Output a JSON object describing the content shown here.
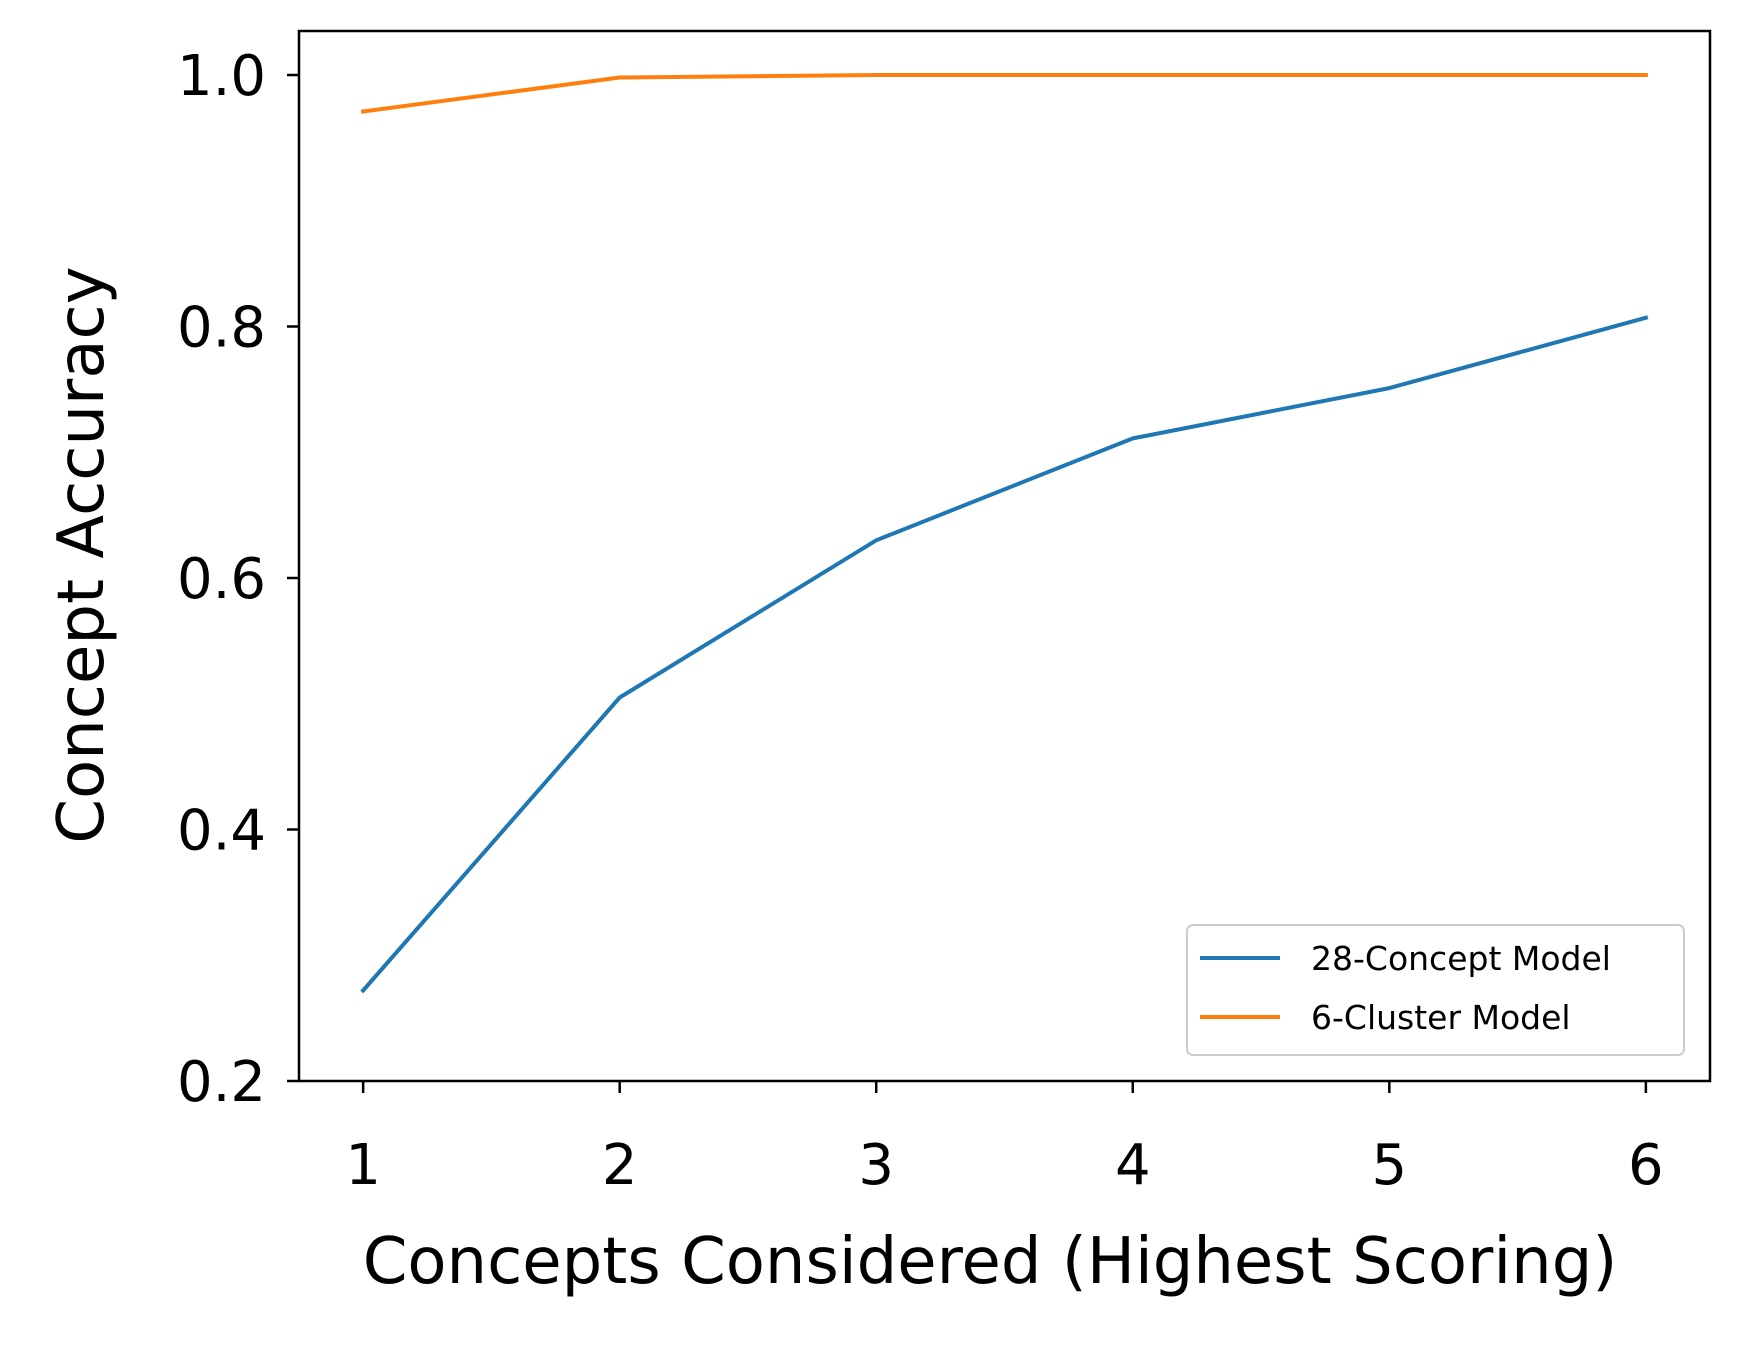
{
  "chart_data": {
    "type": "line",
    "title": "",
    "xlabel": "Concepts Considered (Highest Scoring)",
    "ylabel": "Concept Accuracy",
    "x": [
      1,
      2,
      3,
      4,
      5,
      6
    ],
    "xticks": [
      "1",
      "2",
      "3",
      "4",
      "5",
      "6"
    ],
    "yticks": [
      "0.2",
      "0.4",
      "0.6",
      "0.8",
      "1.0"
    ],
    "ytick_values": [
      0.2,
      0.4,
      0.6,
      0.8,
      1.0
    ],
    "xlim": [
      0.75,
      6.25
    ],
    "ylim": [
      0.2,
      1.035
    ],
    "grid": false,
    "legend_position": "lower-right",
    "series": [
      {
        "name": "28-Concept Model",
        "color": "#1f77b4",
        "values": [
          0.272,
          0.505,
          0.63,
          0.711,
          0.751,
          0.807
        ]
      },
      {
        "name": "6-Cluster Model",
        "color": "#ff7f0e",
        "values": [
          0.971,
          0.998,
          1.0,
          1.0,
          1.0,
          1.0
        ]
      }
    ]
  }
}
